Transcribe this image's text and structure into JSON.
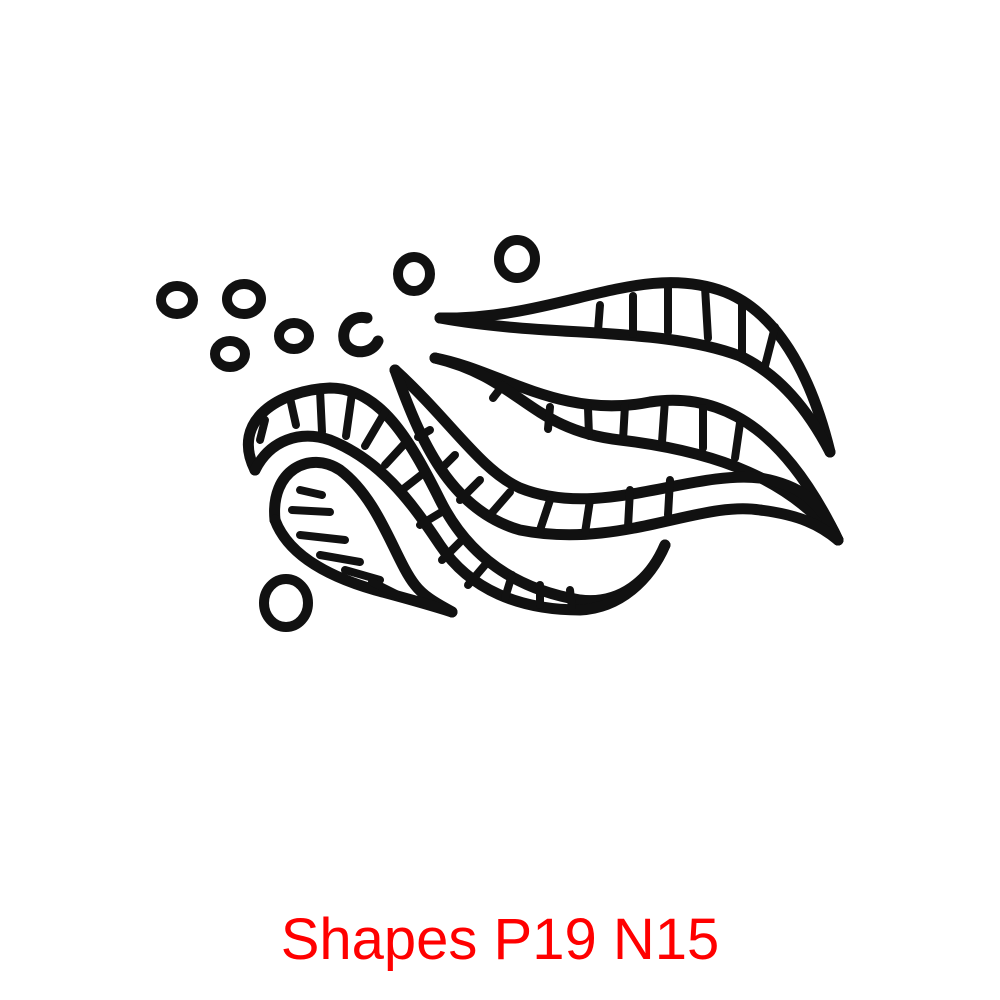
{
  "caption": {
    "text": "Shapes P19 N15",
    "color": "#ff0000"
  },
  "artwork": {
    "subject": "wind-waves-icon",
    "line_color": "#111111",
    "background": "#ffffff"
  }
}
